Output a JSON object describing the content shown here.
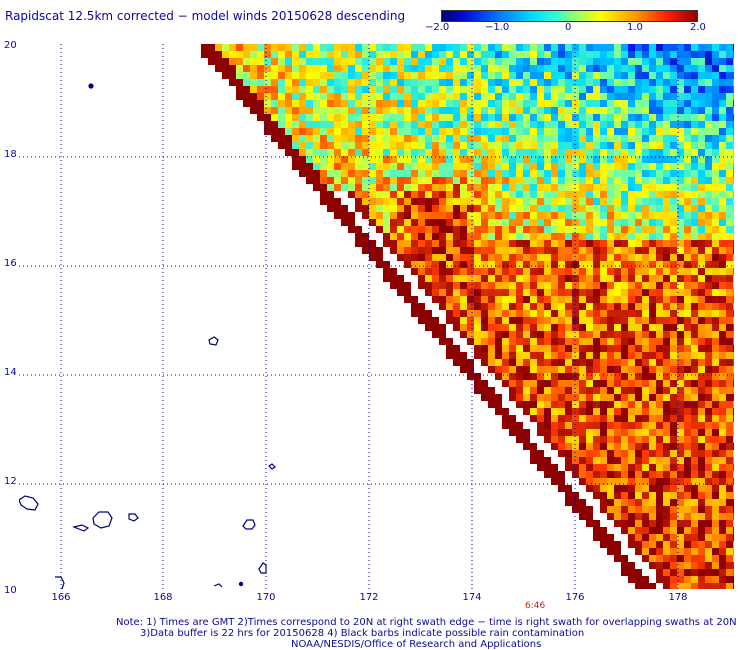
{
  "title": "Rapidscat 12.5km corrected − model winds 20150628 descending",
  "colorbar": {
    "ticks": [
      "−2.0",
      "−1.0",
      "0",
      "1.0",
      "2.0"
    ],
    "range": [
      -2.0,
      2.0
    ],
    "colors": [
      "#00007a",
      "#0010e0",
      "#0078ff",
      "#00d8ff",
      "#30ffd0",
      "#90ff70",
      "#ffff00",
      "#ffa000",
      "#ff2000",
      "#900000"
    ]
  },
  "axes": {
    "y_ticks": [
      "20",
      "18",
      "16",
      "14",
      "12",
      "10"
    ],
    "x_ticks": [
      "166",
      "168",
      "170",
      "172",
      "174",
      "176",
      "178"
    ],
    "lat_range": [
      10,
      20
    ],
    "lon_range": [
      165.2,
      179.2
    ]
  },
  "timestamp": "6:46",
  "notes": [
    "Note: 1) Times are GMT 2)Times correspond to 20N at right swath edge − time is right swath for overlapping swaths at 20N",
    "3)Data buffer is 22 hrs for 20150628 4) Black barbs indicate possible rain contamination",
    "NOAA/NESDIS/Office of Research and Applications"
  ],
  "colors": {
    "text": "#0a0a9a",
    "coast": "#000080",
    "grid": "#0000aa",
    "timestamp": "#b8281c"
  }
}
